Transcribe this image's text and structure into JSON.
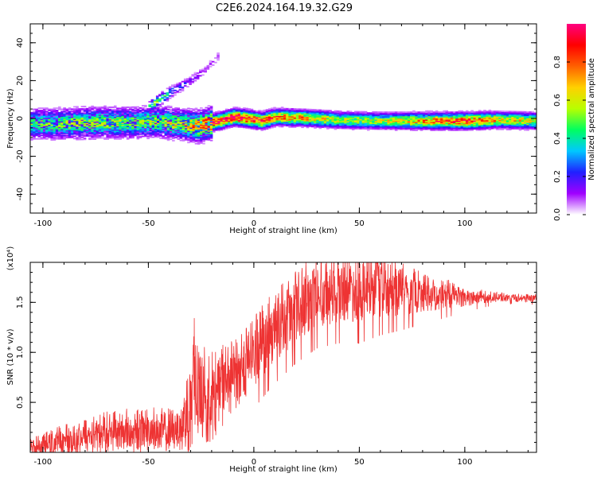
{
  "title": "C2E6.2024.164.19.32.G29",
  "colors": {
    "snr_line": "#ee3333",
    "axes": "#000000",
    "background": "#ffffff"
  },
  "chart_data": [
    {
      "type": "heatmap",
      "xlabel": "Height of straight line (km)",
      "ylabel": "Frequency (Hz)",
      "xlim": [
        -106,
        134
      ],
      "ylim": [
        -50,
        50
      ],
      "xticks": [
        "-100",
        "-50",
        "0",
        "50",
        "100"
      ],
      "yticks": [
        "-40",
        "-20",
        "0",
        "20",
        "40"
      ],
      "colorbar": {
        "label": "Normalized spectral amplitude",
        "range": [
          0.0,
          1.0
        ],
        "ticks": [
          "0.0",
          "0.2",
          "0.4",
          "0.6",
          "0.8"
        ],
        "colormap": [
          "#ffffff",
          "#a000ff",
          "#2020ff",
          "#00c8ff",
          "#00ff60",
          "#b8ff00",
          "#ffd000",
          "#ff6000",
          "#ff0000",
          "#ff0080"
        ]
      },
      "ridge": [
        {
          "x": -106,
          "f": -3,
          "amp": 0.45
        },
        {
          "x": -90,
          "f": -3,
          "amp": 0.5
        },
        {
          "x": -75,
          "f": -2.5,
          "amp": 0.55
        },
        {
          "x": -60,
          "f": -2.5,
          "amp": 0.5
        },
        {
          "x": -45,
          "f": -2,
          "amp": 0.55
        },
        {
          "x": -33,
          "f": -3.5,
          "amp": 0.6
        },
        {
          "x": -27,
          "f": -4.5,
          "amp": 0.75
        },
        {
          "x": -22,
          "f": -3,
          "amp": 0.9
        },
        {
          "x": -15,
          "f": -1,
          "amp": 0.85
        },
        {
          "x": -10,
          "f": 0.5,
          "amp": 1.0
        },
        {
          "x": -5,
          "f": 0,
          "amp": 0.9
        },
        {
          "x": 3,
          "f": -1.5,
          "amp": 0.85
        },
        {
          "x": 10,
          "f": 0.5,
          "amp": 0.75
        },
        {
          "x": 25,
          "f": 0,
          "amp": 0.7
        },
        {
          "x": 40,
          "f": -1,
          "amp": 0.55
        },
        {
          "x": 60,
          "f": -1.5,
          "amp": 0.55
        },
        {
          "x": 80,
          "f": -1.5,
          "amp": 0.7
        },
        {
          "x": 100,
          "f": -1.5,
          "amp": 0.85
        },
        {
          "x": 115,
          "f": -1,
          "amp": 0.65
        },
        {
          "x": 134,
          "f": -1.5,
          "amp": 0.6
        }
      ],
      "branch": [
        {
          "x": -50,
          "f": 6,
          "amp": 0.45
        },
        {
          "x": -45,
          "f": 10,
          "amp": 0.55
        },
        {
          "x": -38,
          "f": 15,
          "amp": 0.25
        },
        {
          "x": -30,
          "f": 20,
          "amp": 0.15
        },
        {
          "x": -24,
          "f": 25,
          "amp": 0.1
        },
        {
          "x": -17,
          "f": 33,
          "amp": 0.08
        }
      ]
    },
    {
      "type": "line",
      "xlabel": "Height of straight line (km)",
      "ylabel": "SNR (10 * v/v)",
      "yscale_label": "(x10⁴)",
      "xlim": [
        -106,
        134
      ],
      "ylim": [
        0.0,
        1.9
      ],
      "xticks": [
        "-100",
        "-50",
        "0",
        "50",
        "100"
      ],
      "yticks": [
        "0.5",
        "1.0",
        "1.5"
      ],
      "envelope": {
        "x": [
          -106,
          -90,
          -70,
          -50,
          -35,
          -30,
          -28,
          -22,
          -10,
          0,
          10,
          20,
          30,
          40,
          50,
          60,
          70,
          80,
          90,
          100,
          110,
          120,
          134
        ],
        "mean": [
          0.05,
          0.12,
          0.2,
          0.22,
          0.22,
          0.5,
          0.75,
          0.5,
          0.75,
          1.0,
          1.25,
          1.45,
          1.6,
          1.65,
          1.65,
          1.65,
          1.62,
          1.6,
          1.58,
          1.56,
          1.55,
          1.55,
          1.54
        ],
        "spread": [
          0.08,
          0.15,
          0.2,
          0.22,
          0.2,
          0.5,
          0.6,
          0.45,
          0.35,
          0.35,
          0.35,
          0.35,
          0.35,
          0.35,
          0.35,
          0.3,
          0.25,
          0.2,
          0.15,
          0.1,
          0.06,
          0.04,
          0.04
        ]
      }
    }
  ]
}
